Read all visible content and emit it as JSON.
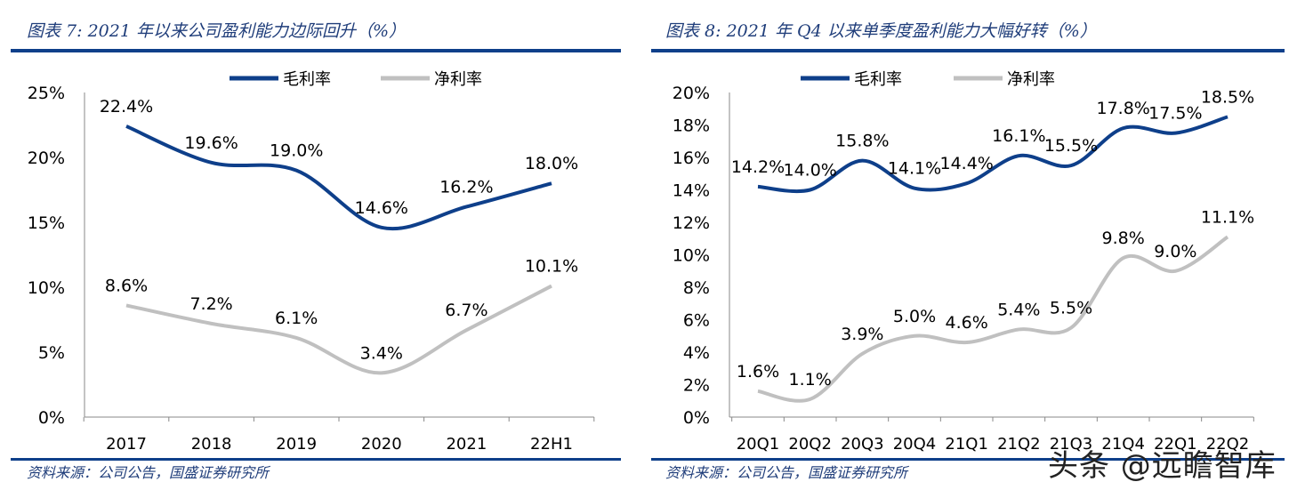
{
  "chart_data": [
    {
      "type": "line",
      "title": "图表 7:  2021 年以来公司盈利能力边际回升（%）",
      "source": "资料来源：公司公告，国盛证券研究所",
      "categories": [
        "2017",
        "2018",
        "2019",
        "2020",
        "2021",
        "22H1"
      ],
      "ylim": [
        0,
        25
      ],
      "yticks": [
        "0%",
        "5%",
        "10%",
        "15%",
        "20%",
        "25%"
      ],
      "legend": "top",
      "series": [
        {
          "name": "毛利率",
          "color": "#0e3f8a",
          "values": [
            22.4,
            19.6,
            19.0,
            14.6,
            16.2,
            18.0
          ],
          "labels": [
            "22.4%",
            "19.6%",
            "19.0%",
            "14.6%",
            "16.2%",
            "18.0%"
          ]
        },
        {
          "name": "净利率",
          "color": "#c0c0c0",
          "values": [
            8.6,
            7.2,
            6.1,
            3.4,
            6.7,
            10.1
          ],
          "labels": [
            "8.6%",
            "7.2%",
            "6.1%",
            "3.4%",
            "6.7%",
            "10.1%"
          ]
        }
      ]
    },
    {
      "type": "line",
      "title": "图表 8:  2021 年 Q4 以来单季度盈利能力大幅好转（%）",
      "source": "资料来源：公司公告，国盛证券研究所",
      "categories": [
        "20Q1",
        "20Q2",
        "20Q3",
        "20Q4",
        "21Q1",
        "21Q2",
        "21Q3",
        "21Q4",
        "22Q1",
        "22Q2"
      ],
      "ylim": [
        0,
        20
      ],
      "yticks": [
        "0%",
        "2%",
        "4%",
        "6%",
        "8%",
        "10%",
        "12%",
        "14%",
        "16%",
        "18%",
        "20%"
      ],
      "legend": "top",
      "series": [
        {
          "name": "毛利率",
          "color": "#0e3f8a",
          "values": [
            14.2,
            14.0,
            15.8,
            14.1,
            14.4,
            16.1,
            15.5,
            17.8,
            17.5,
            18.5
          ],
          "labels": [
            "14.2%",
            "14.0%",
            "15.8%",
            "14.1%",
            "14.4%",
            "16.1%",
            "15.5%",
            "17.8%",
            "17.5%",
            "18.5%"
          ]
        },
        {
          "name": "净利率",
          "color": "#c0c0c0",
          "values": [
            1.6,
            1.1,
            3.9,
            5.0,
            4.6,
            5.4,
            5.5,
            9.8,
            9.0,
            11.1
          ],
          "labels": [
            "1.6%",
            "1.1%",
            "3.9%",
            "5.0%",
            "4.6%",
            "5.4%",
            "5.5%",
            "9.8%",
            "9.0%",
            "11.1%"
          ]
        }
      ]
    }
  ],
  "watermark": "头条 @远瞻智库"
}
